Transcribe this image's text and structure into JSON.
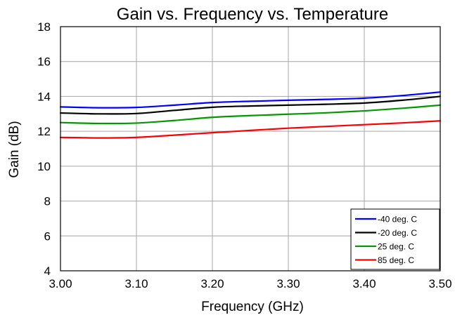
{
  "chart_data": {
    "type": "line",
    "title": "Gain vs. Frequency vs. Temperature",
    "xlabel": "Frequency (GHz)",
    "ylabel": "Gain (dB)",
    "xlim": [
      3.0,
      3.5
    ],
    "ylim": [
      4,
      18
    ],
    "x_ticks": [
      "3.00",
      "3.10",
      "3.20",
      "3.30",
      "3.40",
      "3.50"
    ],
    "y_ticks": [
      "4",
      "6",
      "8",
      "10",
      "12",
      "14",
      "16",
      "18"
    ],
    "grid": true,
    "legend_position": "bottom-right",
    "series": [
      {
        "name": "-40 deg. C",
        "color": "#0000ff",
        "x": [
          3.0,
          3.05,
          3.1,
          3.15,
          3.2,
          3.25,
          3.3,
          3.35,
          3.4,
          3.45,
          3.5
        ],
        "y": [
          13.4,
          13.35,
          13.37,
          13.5,
          13.65,
          13.72,
          13.78,
          13.83,
          13.9,
          14.05,
          14.25
        ]
      },
      {
        "name": "-20 deg. C",
        "color": "#000000",
        "x": [
          3.0,
          3.05,
          3.1,
          3.15,
          3.2,
          3.25,
          3.3,
          3.35,
          3.4,
          3.45,
          3.5
        ],
        "y": [
          13.05,
          13.0,
          13.02,
          13.2,
          13.38,
          13.45,
          13.5,
          13.55,
          13.62,
          13.78,
          14.0
        ]
      },
      {
        "name": "25 deg. C",
        "color": "#009900",
        "x": [
          3.0,
          3.05,
          3.1,
          3.15,
          3.2,
          3.25,
          3.3,
          3.35,
          3.4,
          3.45,
          3.5
        ],
        "y": [
          12.5,
          12.45,
          12.47,
          12.62,
          12.8,
          12.9,
          12.98,
          13.06,
          13.17,
          13.32,
          13.5
        ]
      },
      {
        "name": "85 deg. C",
        "color": "#ff0000",
        "x": [
          3.0,
          3.05,
          3.1,
          3.15,
          3.2,
          3.25,
          3.3,
          3.35,
          3.4,
          3.45,
          3.5
        ],
        "y": [
          11.65,
          11.62,
          11.65,
          11.78,
          11.92,
          12.05,
          12.18,
          12.28,
          12.38,
          12.48,
          12.6
        ]
      }
    ]
  }
}
